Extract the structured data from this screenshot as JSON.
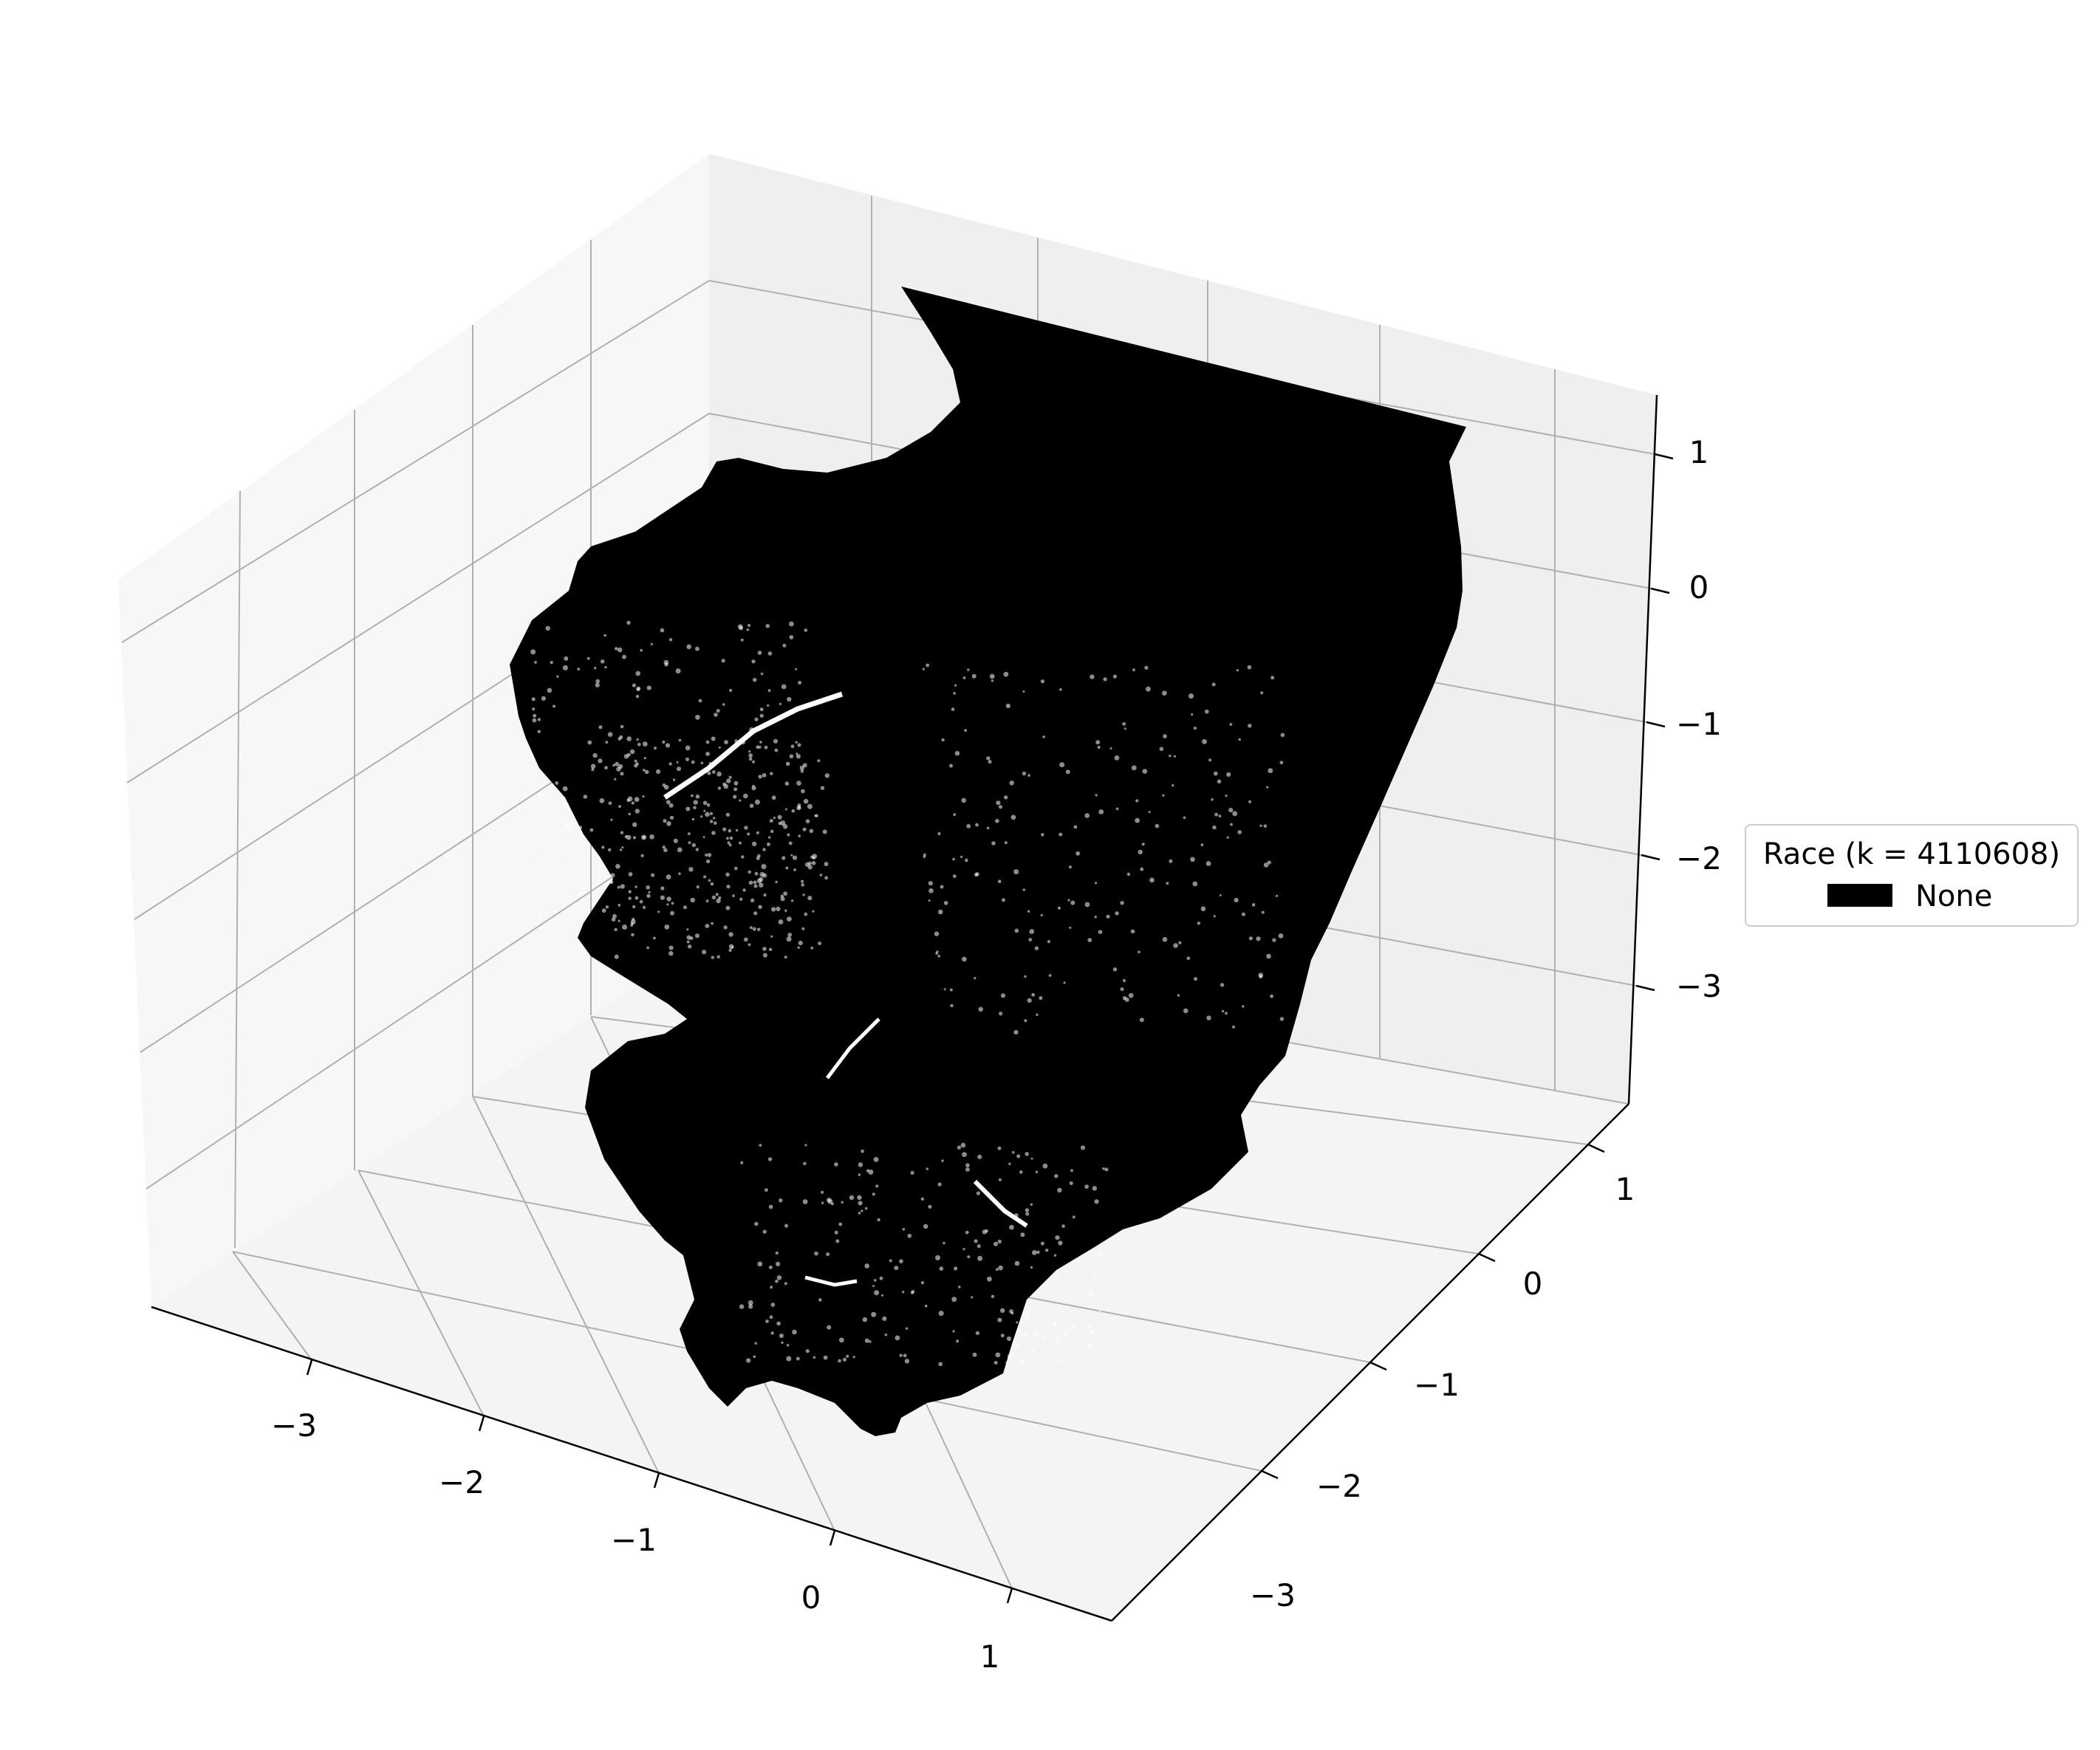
{
  "chart_data": {
    "type": "scatter",
    "projection": "3d",
    "title": "",
    "xlabel": "",
    "ylabel": "",
    "zlabel": "",
    "x_ticks": [
      "−3",
      "−2",
      "−1",
      "0",
      "1"
    ],
    "y_ticks": [
      "−3",
      "−2",
      "−1",
      "0",
      "1"
    ],
    "z_ticks": [
      "−3",
      "−2",
      "−1",
      "0",
      "1"
    ],
    "xlim": [
      -3.9,
      1.6
    ],
    "ylim": [
      -3.9,
      1.6
    ],
    "zlim": [
      -3.9,
      1.4
    ],
    "grid": true,
    "legend": {
      "title": "Race (k = 4110608)",
      "placement": "center-right",
      "entries": [
        {
          "label": "None",
          "color": "#000000"
        }
      ]
    },
    "series": [
      {
        "name": "None",
        "color": "#000000",
        "marker_size": "small",
        "point_count_note": "dense point cloud forming a map-shaped silhouette"
      }
    ]
  }
}
